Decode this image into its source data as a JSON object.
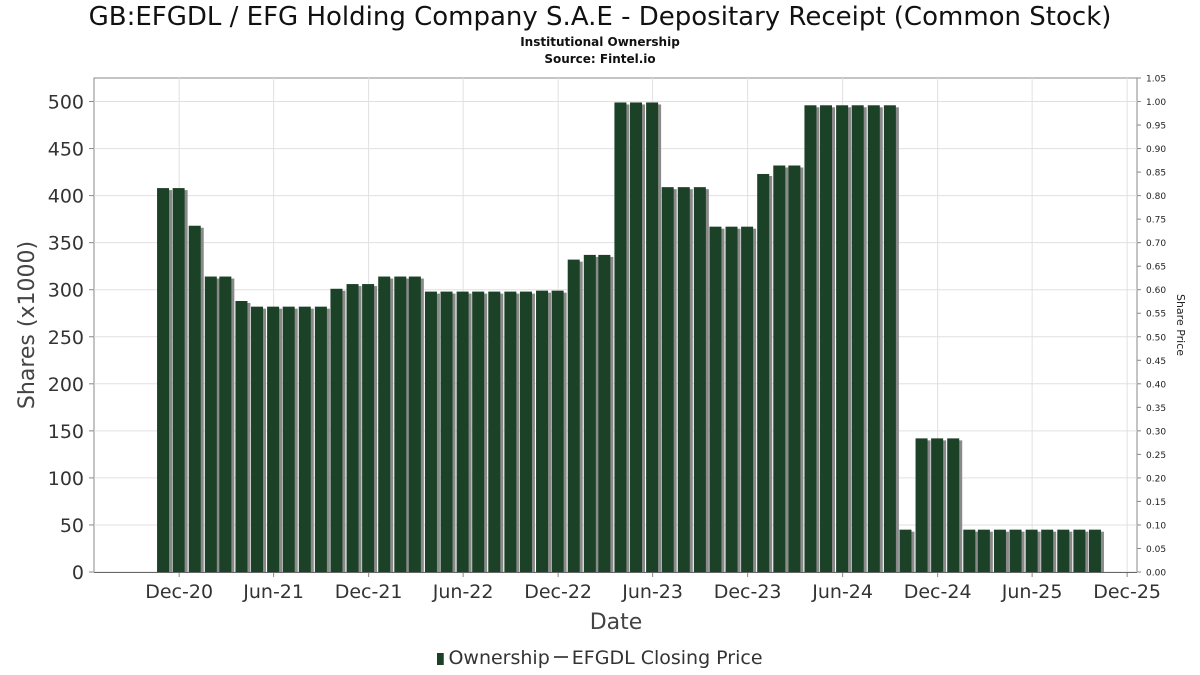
{
  "chart_data": {
    "type": "bar",
    "title": "GB:EFGDL / EFG Holding Company S.A.E - Depositary Receipt (Common Stock)",
    "subtitle": [
      "Institutional Ownership",
      "Source: Fintel.io"
    ],
    "xlabel": "Date",
    "ylabel": "Shares (x1000)",
    "y2label": "Share Price",
    "ylim": [
      0,
      525
    ],
    "y2lim": [
      0,
      1.05
    ],
    "yticks": [
      0,
      50,
      100,
      150,
      200,
      250,
      300,
      350,
      400,
      450,
      500
    ],
    "y2ticks": [
      "0.00",
      "0.05",
      "0.10",
      "0.15",
      "0.20",
      "0.25",
      "0.30",
      "0.35",
      "0.40",
      "0.45",
      "0.50",
      "0.55",
      "0.60",
      "0.65",
      "0.70",
      "0.75",
      "0.80",
      "0.85",
      "0.90",
      "0.95",
      "1.00",
      "1.05"
    ],
    "xticks": [
      {
        "label": "Dec-20",
        "date": "2020-12-01"
      },
      {
        "label": "Jun-21",
        "date": "2021-06-01"
      },
      {
        "label": "Dec-21",
        "date": "2021-12-01"
      },
      {
        "label": "Jun-22",
        "date": "2022-06-01"
      },
      {
        "label": "Dec-22",
        "date": "2022-12-01"
      },
      {
        "label": "Jun-23",
        "date": "2023-06-01"
      },
      {
        "label": "Dec-23",
        "date": "2023-12-01"
      },
      {
        "label": "Jun-24",
        "date": "2024-06-01"
      },
      {
        "label": "Dec-24",
        "date": "2024-12-01"
      },
      {
        "label": "Jun-25",
        "date": "2025-06-01"
      },
      {
        "label": "Dec-25",
        "date": "2025-12-01"
      }
    ],
    "xlim": [
      "2020-06-20",
      "2025-12-20"
    ],
    "grid": true,
    "legend_position": "bottom",
    "series": [
      {
        "name": "Ownership",
        "color": "#1b4126",
        "points": [
          {
            "date": "2020-10-31",
            "value": 408
          },
          {
            "date": "2020-11-30",
            "value": 408
          },
          {
            "date": "2020-12-31",
            "value": 368
          },
          {
            "date": "2021-01-31",
            "value": 314
          },
          {
            "date": "2021-02-28",
            "value": 314
          },
          {
            "date": "2021-03-31",
            "value": 288
          },
          {
            "date": "2021-04-30",
            "value": 282
          },
          {
            "date": "2021-05-31",
            "value": 282
          },
          {
            "date": "2021-06-30",
            "value": 282
          },
          {
            "date": "2021-07-31",
            "value": 282
          },
          {
            "date": "2021-08-31",
            "value": 282
          },
          {
            "date": "2021-09-30",
            "value": 301
          },
          {
            "date": "2021-10-31",
            "value": 306
          },
          {
            "date": "2021-11-30",
            "value": 306
          },
          {
            "date": "2021-12-31",
            "value": 314
          },
          {
            "date": "2022-01-31",
            "value": 314
          },
          {
            "date": "2022-02-28",
            "value": 314
          },
          {
            "date": "2022-03-31",
            "value": 298
          },
          {
            "date": "2022-04-30",
            "value": 298
          },
          {
            "date": "2022-05-31",
            "value": 298
          },
          {
            "date": "2022-06-30",
            "value": 298
          },
          {
            "date": "2022-07-31",
            "value": 298
          },
          {
            "date": "2022-08-31",
            "value": 298
          },
          {
            "date": "2022-09-30",
            "value": 298
          },
          {
            "date": "2022-10-31",
            "value": 299
          },
          {
            "date": "2022-11-30",
            "value": 299
          },
          {
            "date": "2022-12-31",
            "value": 332
          },
          {
            "date": "2023-01-31",
            "value": 337
          },
          {
            "date": "2023-02-28",
            "value": 337
          },
          {
            "date": "2023-03-31",
            "value": 499
          },
          {
            "date": "2023-04-30",
            "value": 499
          },
          {
            "date": "2023-05-31",
            "value": 499
          },
          {
            "date": "2023-06-30",
            "value": 409
          },
          {
            "date": "2023-07-31",
            "value": 409
          },
          {
            "date": "2023-08-31",
            "value": 409
          },
          {
            "date": "2023-09-30",
            "value": 367
          },
          {
            "date": "2023-10-31",
            "value": 367
          },
          {
            "date": "2023-11-30",
            "value": 367
          },
          {
            "date": "2023-12-31",
            "value": 423
          },
          {
            "date": "2024-01-31",
            "value": 432
          },
          {
            "date": "2024-02-29",
            "value": 432
          },
          {
            "date": "2024-03-31",
            "value": 496
          },
          {
            "date": "2024-04-30",
            "value": 496
          },
          {
            "date": "2024-05-31",
            "value": 496
          },
          {
            "date": "2024-06-30",
            "value": 496
          },
          {
            "date": "2024-07-31",
            "value": 496
          },
          {
            "date": "2024-08-31",
            "value": 496
          },
          {
            "date": "2024-09-30",
            "value": 45
          },
          {
            "date": "2024-10-31",
            "value": 142
          },
          {
            "date": "2024-11-30",
            "value": 142
          },
          {
            "date": "2024-12-31",
            "value": 142
          },
          {
            "date": "2025-01-31",
            "value": 45
          },
          {
            "date": "2025-02-28",
            "value": 45
          },
          {
            "date": "2025-03-31",
            "value": 45
          },
          {
            "date": "2025-04-30",
            "value": 45
          },
          {
            "date": "2025-05-31",
            "value": 45
          },
          {
            "date": "2025-06-30",
            "value": 45
          },
          {
            "date": "2025-07-31",
            "value": 45
          },
          {
            "date": "2025-08-31",
            "value": 45
          },
          {
            "date": "2025-09-30",
            "value": 45
          }
        ]
      },
      {
        "name": "EFGDL Closing Price",
        "color": "#555555",
        "points": []
      }
    ]
  }
}
